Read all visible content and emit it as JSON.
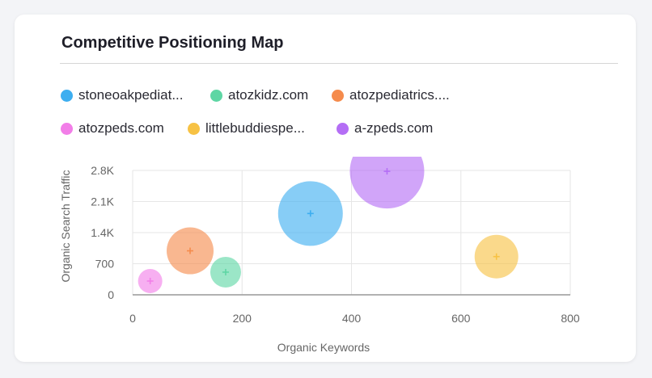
{
  "card": {
    "title": "Competitive Positioning Map"
  },
  "chart_data": {
    "type": "scatter",
    "title": "Competitive Positioning Map",
    "xlabel": "Organic Keywords",
    "ylabel": "Organic Search Traffic",
    "xlim": [
      0,
      800
    ],
    "ylim": [
      0,
      2800
    ],
    "x_ticks": [
      0,
      200,
      400,
      600,
      800
    ],
    "x_tick_labels": [
      "0",
      "200",
      "400",
      "600",
      "800"
    ],
    "y_ticks": [
      0,
      700,
      1400,
      2100,
      2800
    ],
    "y_tick_labels": [
      "0",
      "700",
      "1.4K",
      "2.1K",
      "2.8K"
    ],
    "grid": true,
    "legend_position": "top",
    "series": [
      {
        "name": "stoneoakpediat...",
        "color": "#3daef0",
        "x": 325,
        "y": 1830,
        "size": 40
      },
      {
        "name": "atozkidz.com",
        "color": "#5ed6a4",
        "x": 170,
        "y": 510,
        "size": 19
      },
      {
        "name": "atozpediatrics....",
        "color": "#f58b4c",
        "x": 105,
        "y": 990,
        "size": 29
      },
      {
        "name": "atozpeds.com",
        "color": "#f27ee8",
        "x": 32,
        "y": 310,
        "size": 15
      },
      {
        "name": "littlebuddiespe...",
        "color": "#f7c244",
        "x": 665,
        "y": 860,
        "size": 27
      },
      {
        "name": "a-zpeds.com",
        "color": "#b46ef5",
        "x": 465,
        "y": 2780,
        "size": 46
      }
    ]
  }
}
